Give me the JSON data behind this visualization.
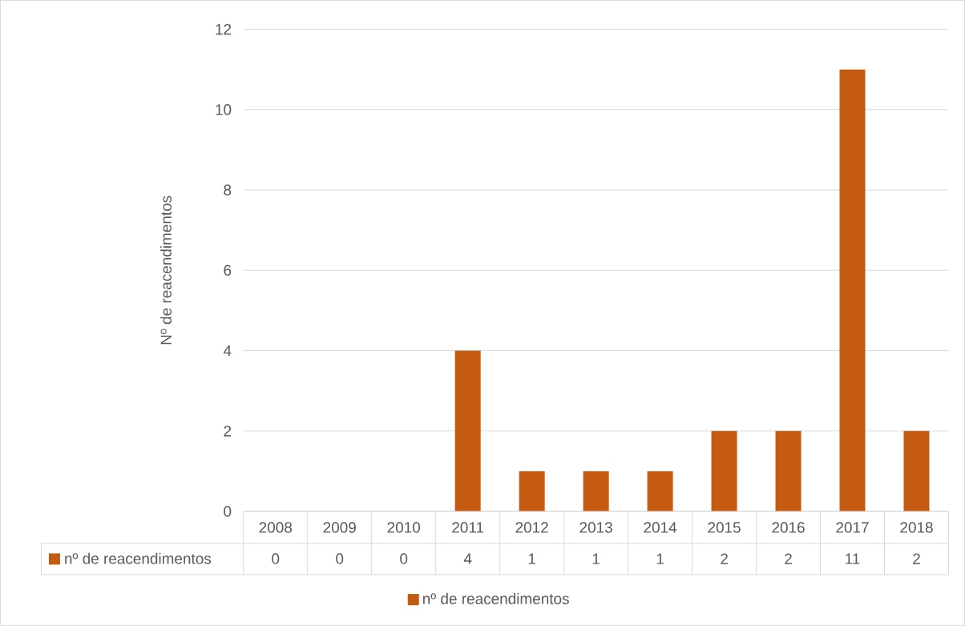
{
  "chart_data": {
    "type": "bar",
    "ylabel": "Nº de reacendimentos",
    "categories": [
      "2008",
      "2009",
      "2010",
      "2011",
      "2012",
      "2013",
      "2014",
      "2015",
      "2016",
      "2017",
      "2018"
    ],
    "series": [
      {
        "name": "nº de reacendimentos",
        "color": "#c55a11",
        "values": [
          0,
          0,
          0,
          4,
          1,
          1,
          1,
          2,
          2,
          11,
          2
        ]
      }
    ],
    "ylim": [
      0,
      12
    ],
    "yticks": [
      0,
      2,
      4,
      6,
      8,
      10,
      12
    ],
    "grid": "y",
    "legend": "bottom",
    "data_labels": true
  }
}
